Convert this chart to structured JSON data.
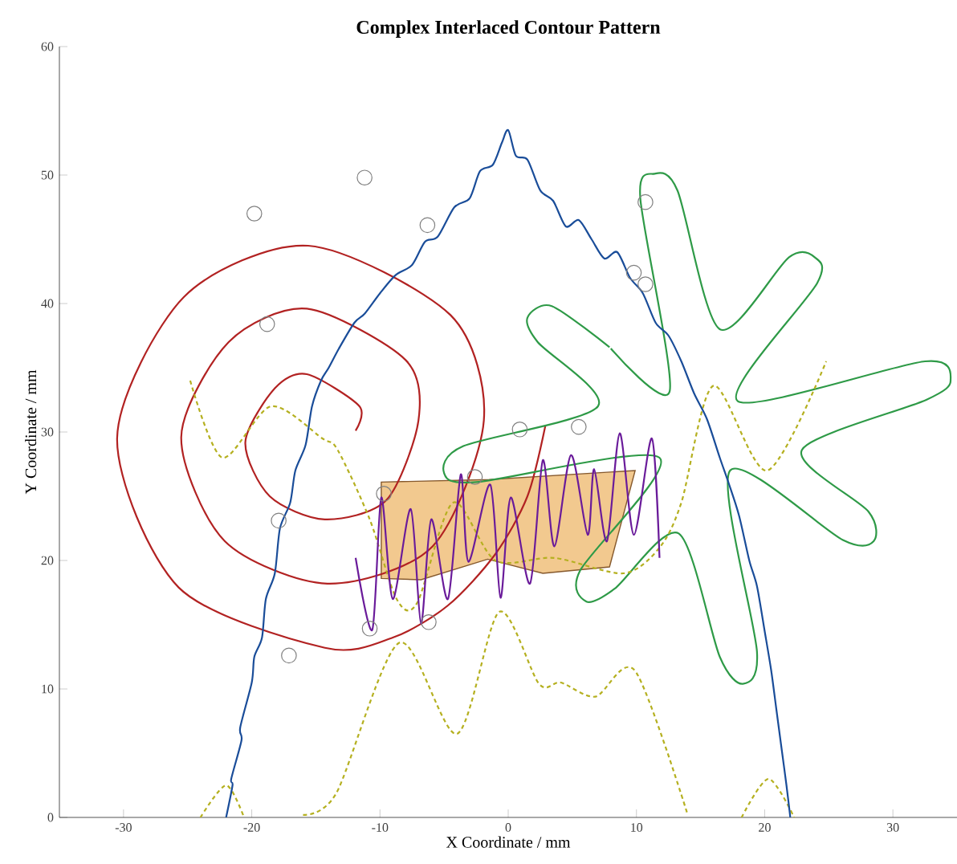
{
  "chart_data": {
    "type": "line",
    "title": "Complex Interlaced Contour Pattern",
    "xlabel": "X Coordinate / mm",
    "ylabel": "Y Coordinate / mm",
    "xlim": [
      -35,
      35
    ],
    "ylim": [
      0,
      60
    ],
    "xticks": [
      -30,
      -20,
      -10,
      0,
      10,
      20,
      30
    ],
    "yticks": [
      0,
      10,
      20,
      30,
      40,
      50,
      60
    ],
    "series": [
      {
        "type": "area",
        "color": "#f2c98f",
        "x": [
          -9.9,
          -6.8,
          -1.6,
          2.7,
          7.9,
          9.9,
          -1.5,
          -9.9
        ],
        "values": [
          18.6,
          18.5,
          20.1,
          19.0,
          19.5,
          27.0,
          26.3,
          26.1
        ]
      },
      {
        "color": "#b22222",
        "x": [
          -11.9,
          -11.6,
          -15.7,
          -18.2,
          -20.5,
          -18.6,
          -14.3,
          -9.5,
          -7.0,
          -8.0,
          -15.7,
          -21.8,
          -25.5,
          -22.1,
          -14.1,
          -5.9,
          -1.9,
          -4.5,
          -15.6,
          -25.3,
          -30.5,
          -25.7,
          -14.3,
          -9.0,
          -4.7,
          -1.0,
          1.5,
          2.9
        ],
        "values": [
          30.1,
          32.0,
          34.5,
          33.4,
          29.2,
          25.0,
          23.2,
          24.7,
          30.9,
          35.6,
          39.6,
          37.0,
          29.6,
          21.5,
          18.2,
          21.1,
          30.9,
          39.1,
          44.5,
          40.5,
          29.5,
          17.9,
          13.2,
          14.0,
          16.5,
          20.5,
          25.0,
          30.5
        ]
      },
      {
        "color": "#2e9a47",
        "x": [
          8.0,
          12.6,
          10.3,
          11.4,
          13.2,
          16.5,
          21.9,
          23.9,
          24.1,
          17.9,
          32.5,
          34.5,
          32.6,
          22.9,
          28.1,
          28.5,
          26.1,
          17.3,
          19.4,
          18.3,
          16.5,
          13.3,
          8.3,
          6.1,
          5.6,
          11.8,
          -2.5,
          -5.0,
          -3.5,
          7.0,
          2.3,
          1.5,
          3.4,
          7.9
        ],
        "values": [
          36.5,
          33.2,
          48.2,
          50.1,
          48.8,
          38.0,
          43.6,
          43.6,
          41.6,
          32.4,
          35.5,
          34.0,
          32.5,
          28.6,
          23.8,
          21.5,
          21.6,
          27.0,
          12.9,
          10.4,
          12.5,
          22.1,
          17.8,
          16.8,
          19.2,
          28.0,
          26.1,
          26.8,
          28.9,
          32.0,
          37.0,
          38.9,
          39.8,
          36.6
        ]
      },
      {
        "color": "#b5b020",
        "line_style": "dashed",
        "x": [
          -24.8,
          -22.3,
          -18.5,
          -14.5,
          -13.3,
          -10.8,
          -8.7,
          -7.1,
          -4.3,
          -1.0,
          3.6,
          9.0,
          11.8,
          13.5,
          16.0,
          20.2,
          24.8
        ],
        "values": [
          34.0,
          28.0,
          32.0,
          29.5,
          28.6,
          23.2,
          17.0,
          16.7,
          24.5,
          20.0,
          20.2,
          19.0,
          21.0,
          24.5,
          33.6,
          27.0,
          35.5
        ]
      },
      {
        "color": "#b5b020",
        "line_style": "dashed",
        "x": [
          -16.0,
          -13.4,
          -8.5,
          -4.0,
          -0.7,
          2.4,
          4.1,
          6.8,
          9.9,
          14.0
        ],
        "values": [
          0.2,
          1.9,
          13.6,
          6.5,
          16.0,
          10.4,
          10.5,
          9.4,
          11.4,
          0.2
        ]
      },
      {
        "color": "#b5b020",
        "line_style": "dashed",
        "x": [
          -24.0,
          -22.0,
          -20.6
        ],
        "values": [
          0.0,
          2.5,
          0.0
        ]
      },
      {
        "color": "#b5b020",
        "line_style": "dashed",
        "x": [
          18.2,
          20.3,
          22.3
        ],
        "values": [
          0.0,
          3.0,
          0.0
        ]
      },
      {
        "color": "#6a1b9a",
        "x": [
          -11.9,
          -10.6,
          -9.9,
          -9.0,
          -7.6,
          -6.8,
          -6.0,
          -4.7,
          -3.7,
          -3.1,
          -1.4,
          -0.6,
          0.2,
          1.7,
          2.7,
          3.6,
          4.9,
          6.2,
          6.7,
          7.7,
          8.7,
          9.8,
          11.2,
          11.8
        ],
        "values": [
          20.2,
          14.6,
          24.9,
          17.0,
          24.0,
          15.1,
          23.2,
          17.0,
          26.7,
          19.9,
          25.9,
          17.1,
          24.9,
          18.2,
          27.8,
          21.1,
          28.2,
          22.0,
          27.1,
          21.5,
          29.9,
          22.0,
          29.5,
          20.2
        ]
      },
      {
        "color": "#1a4d99",
        "x": [
          -22,
          -21.5,
          -21.6,
          -20.8,
          -20.9,
          -20,
          -19.8,
          -19.2,
          -18.9,
          -18.2,
          -17.8,
          -17,
          -16.6,
          -15.8,
          -15.3,
          -14.6,
          -14,
          -13.2,
          -12,
          -11.2,
          -10,
          -8.8,
          -7.5,
          -6.5,
          -5.5,
          -4.2,
          -3,
          -2.2,
          -1.2,
          -0.5,
          0,
          0.6,
          1.5,
          2.5,
          3.5,
          4.5,
          5.5,
          6.5,
          7.5,
          8.5,
          9.5,
          10.5,
          11.5,
          12.5,
          13.5,
          14.5,
          15.5,
          16.5,
          17.2,
          18,
          18.8,
          19.4,
          20,
          20.5,
          20.9,
          21.3,
          21.7,
          22
        ],
        "values": [
          0,
          2.5,
          3,
          6,
          7,
          10.5,
          12.5,
          14,
          17,
          19,
          22.5,
          24.5,
          27,
          29,
          32,
          34,
          35,
          36.5,
          38.5,
          39.2,
          40.8,
          42.2,
          43,
          44.8,
          45.2,
          47.5,
          48.2,
          50.3,
          50.8,
          52.5,
          53.5,
          51.5,
          51.2,
          48.8,
          48,
          46,
          46.5,
          45,
          43.5,
          44,
          42,
          40.8,
          38.5,
          37.5,
          35.5,
          33,
          31,
          28,
          26,
          23.5,
          20,
          18,
          14.5,
          11.5,
          8.5,
          5.5,
          2.5,
          0
        ]
      },
      {
        "type": "scatter",
        "color": "#808080",
        "marker": "circle",
        "x": [
          -19.8,
          -11.2,
          -6.3,
          -18.8,
          -17.9,
          -9.7,
          -17.1,
          -10.8,
          -6.2,
          -2.6,
          0.9,
          5.5,
          10.7,
          9.8,
          10.7
        ],
        "values": [
          47.0,
          49.8,
          46.1,
          38.4,
          23.1,
          25.2,
          12.6,
          14.7,
          15.2,
          26.5,
          30.2,
          30.4,
          47.9,
          42.4,
          41.5
        ]
      }
    ]
  }
}
